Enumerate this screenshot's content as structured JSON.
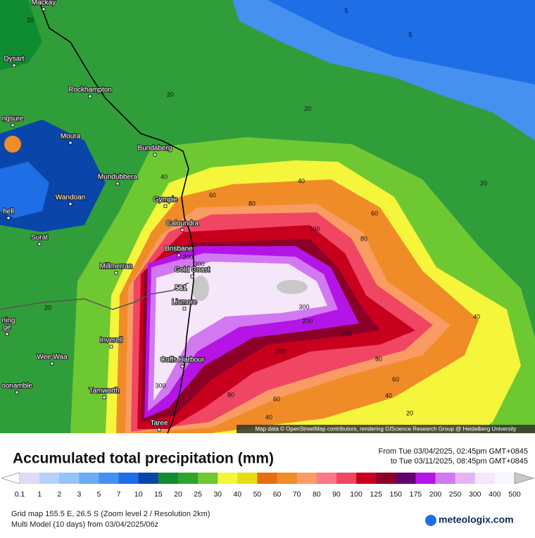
{
  "map": {
    "cities": [
      "Mackay",
      "Dysart",
      "Rockhampton",
      "ngsure",
      "Moura",
      "Bundaberg",
      "Mundubbera",
      "Wandoan",
      "Gympie",
      "hell",
      "Caloundra",
      "Surat",
      "Brisbane",
      "Millmerran",
      "Gold Coast",
      "Lismore",
      "ning",
      "ge",
      "Inverell",
      "Wee Waa",
      "Coffs Harbour",
      "oonamble",
      "Tamworth",
      "Taree"
    ],
    "contour_labels": [
      "5",
      "5",
      "20",
      "20",
      "20",
      "20",
      "40",
      "40",
      "60",
      "80",
      "100",
      "60",
      "80",
      "20",
      "200",
      "300",
      "300",
      "200",
      "150",
      "100",
      "80",
      "60",
      "40",
      "20",
      "40",
      "80",
      "60",
      "40",
      "300"
    ],
    "max_label": "561",
    "attribution": "Map data © OpenStreetMap contributors, rendering GIScience Research Group @ Heidelberg University"
  },
  "legend": {
    "title": "Accumulated total precipitation (mm)",
    "period_from": "From Tue 03/04/2025, 02:45pm GMT+0845",
    "period_to": "to Tue 03/11/2025, 08:45pm GMT+0845",
    "scale": [
      "0.1",
      "1",
      "2",
      "3",
      "5",
      "7",
      "10",
      "15",
      "20",
      "25",
      "30",
      "40",
      "50",
      "60",
      "70",
      "80",
      "90",
      "100",
      "125",
      "150",
      "175",
      "200",
      "250",
      "300",
      "400",
      "500"
    ],
    "colors": [
      "#ffffff",
      "#e0dcf6",
      "#b4d2fa",
      "#96c3fa",
      "#6eaaf5",
      "#4690f0",
      "#1e6ee6",
      "#0a46aa",
      "#0f8c32",
      "#2da52d",
      "#6ec832",
      "#f5f53c",
      "#e6dc14",
      "#e66e0f",
      "#f08c28",
      "#fa9b64",
      "#fa7887",
      "#f04664",
      "#c8001e",
      "#8c0028",
      "#64006e",
      "#b414e6",
      "#d278f0",
      "#e6b4f5",
      "#f5e6fa",
      "#faf5ff",
      "#c8c8c8"
    ]
  },
  "footer": {
    "grid": "Grid map 155.5 E, 26.5 S (Zoom level 2 / Resolution 2km)",
    "model": "Multi Model (10 days) from 03/04/2025/06z",
    "brand": "meteologix.com"
  }
}
